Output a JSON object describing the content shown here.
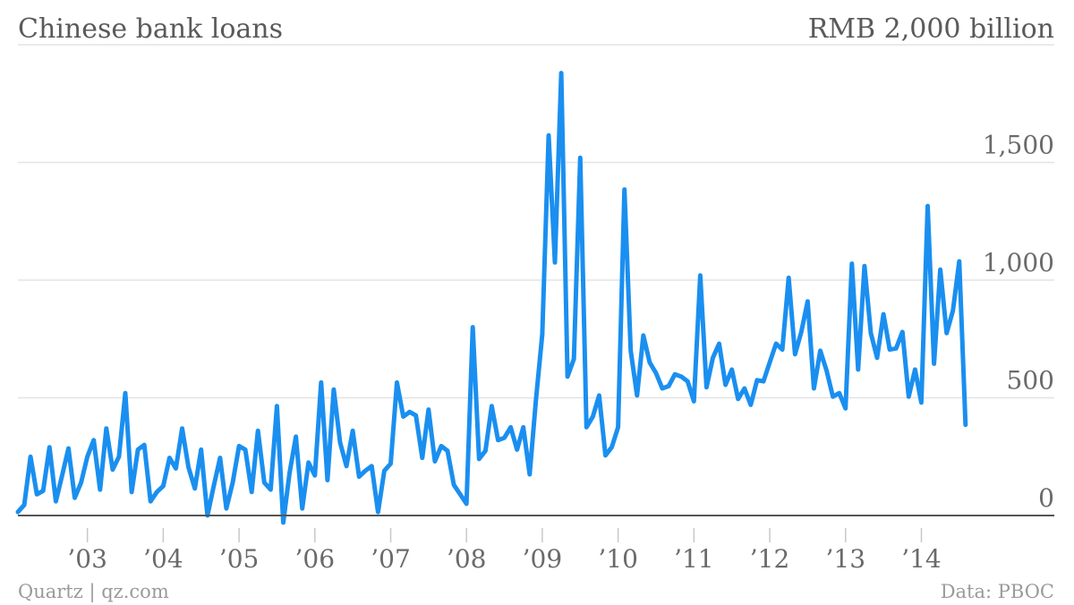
{
  "chart_data": {
    "type": "line",
    "title": "Chinese bank loans",
    "unit_label": "RMB 2,000 billion",
    "source_left": "Quartz | qz.com",
    "source_right": "Data: PBOC",
    "line_color": "#1a8ff0",
    "grid": true,
    "ylim": [
      0,
      2000
    ],
    "y_ticks": [
      {
        "value": 500,
        "label": "500"
      },
      {
        "value": 1000,
        "label": "1,000"
      },
      {
        "value": 1500,
        "label": "1,500"
      },
      {
        "value": 0,
        "label": "0"
      }
    ],
    "x_ticks": [
      {
        "value": 2003,
        "label": "’03"
      },
      {
        "value": 2004,
        "label": "’04"
      },
      {
        "value": 2005,
        "label": "’05"
      },
      {
        "value": 2006,
        "label": "’06"
      },
      {
        "value": 2007,
        "label": "’07"
      },
      {
        "value": 2008,
        "label": "’08"
      },
      {
        "value": 2009,
        "label": "’09"
      },
      {
        "value": 2010,
        "label": "’10"
      },
      {
        "value": 2011,
        "label": "’11"
      },
      {
        "value": 2012,
        "label": "’12"
      },
      {
        "value": 2013,
        "label": "’13"
      },
      {
        "value": 2014,
        "label": "’14"
      }
    ],
    "xlim": [
      2002.083,
      2014.75
    ],
    "x_start": 2002.083,
    "x_step": 0.083333,
    "series": [
      {
        "values": [
          15,
          45,
          250,
          90,
          105,
          290,
          60,
          170,
          285,
          75,
          140,
          250,
          320,
          110,
          370,
          195,
          250,
          520,
          100,
          280,
          300,
          60,
          100,
          125,
          245,
          200,
          370,
          205,
          115,
          280,
          0,
          125,
          245,
          30,
          140,
          295,
          280,
          100,
          360,
          140,
          110,
          465,
          -30,
          180,
          335,
          30,
          225,
          170,
          565,
          150,
          535,
          310,
          210,
          360,
          165,
          190,
          210,
          15,
          190,
          220,
          565,
          420,
          440,
          425,
          245,
          450,
          230,
          295,
          275,
          130,
          90,
          50,
          800,
          240,
          275,
          465,
          320,
          330,
          375,
          280,
          375,
          175,
          490,
          770,
          1615,
          1075,
          1880,
          590,
          665,
          1520,
          375,
          420,
          510,
          255,
          290,
          375,
          1385,
          700,
          510,
          765,
          650,
          605,
          540,
          550,
          600,
          590,
          570,
          485,
          1020,
          545,
          670,
          730,
          555,
          620,
          495,
          540,
          470,
          575,
          570,
          650,
          730,
          705,
          1010,
          685,
          780,
          910,
          540,
          700,
          615,
          505,
          520,
          455,
          1070,
          620,
          1060,
          775,
          670,
          855,
          705,
          710,
          780,
          505,
          620,
          480,
          1315,
          645,
          1045,
          775,
          870,
          1080,
          385
        ]
      }
    ]
  }
}
